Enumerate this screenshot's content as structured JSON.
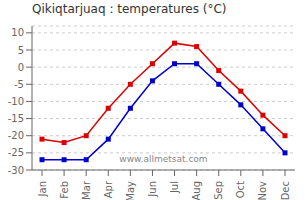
{
  "chart_data": {
    "type": "line",
    "title": "Qikiqtarjuaq : temperatures (°C)",
    "categories": [
      "Jan",
      "Feb",
      "Mar",
      "Apr",
      "May",
      "Jun",
      "Jul",
      "Aug",
      "Sep",
      "Oct",
      "Nov",
      "Dec"
    ],
    "series": [
      {
        "color": "#dd0000",
        "values": [
          -21,
          -22,
          -20,
          -12,
          -5,
          1,
          7,
          6,
          -1,
          -7,
          -14,
          -20
        ],
        "marker": "square"
      },
      {
        "color": "#0000cc",
        "values": [
          -27,
          -27,
          -27,
          -21,
          -12,
          -4,
          1,
          1,
          -5,
          -11,
          -18,
          -25
        ],
        "marker": "square"
      }
    ],
    "ylim": [
      -30,
      12
    ],
    "yticks": [
      -30,
      -25,
      -20,
      -15,
      -10,
      -5,
      0,
      5,
      10
    ],
    "grid": "y",
    "annotations": [
      "www.allmetsat.com"
    ]
  }
}
